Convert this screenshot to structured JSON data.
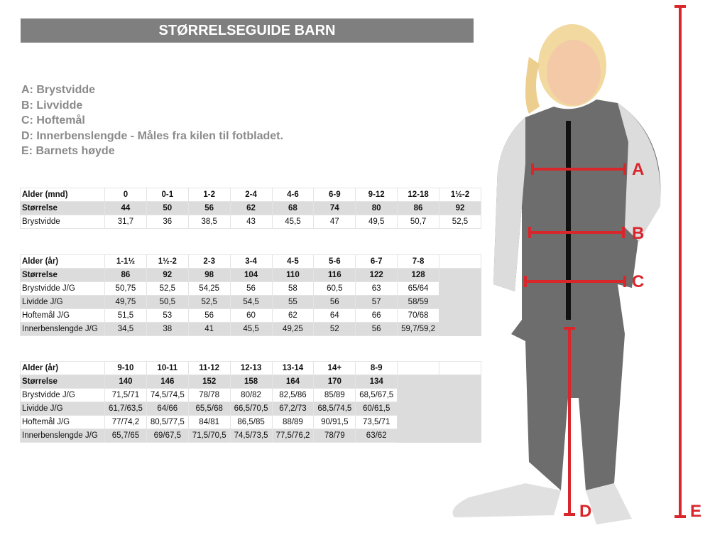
{
  "title": "STØRRELSEGUIDE BARN",
  "legend": [
    "A: Brystvidde",
    "B: Livvidde",
    "C: Hoftemål",
    "D: Innerbenslengde - Måles fra kilen til fotbladet.",
    "E: Barnets høyde"
  ],
  "tables": [
    {
      "rows": [
        [
          "Alder (mnd)",
          "0",
          "0-1",
          "1-2",
          "2-4",
          "4-6",
          "6-9",
          "9-12",
          "12-18",
          "1½-2"
        ],
        [
          "Størrelse",
          "44",
          "50",
          "56",
          "62",
          "68",
          "74",
          "80",
          "86",
          "92"
        ],
        [
          "Brystvidde",
          "31,7",
          "36",
          "38,5",
          "43",
          "45,5",
          "47",
          "49,5",
          "50,7",
          "52,5"
        ]
      ]
    },
    {
      "rows": [
        [
          "Alder (år)",
          "1-1½",
          "1½-2",
          "2-3",
          "3-4",
          "4-5",
          "5-6",
          "6-7",
          "7-8",
          ""
        ],
        [
          "Størrelse",
          "86",
          "92",
          "98",
          "104",
          "110",
          "116",
          "122",
          "128"
        ],
        [
          "Brystvidde J/G",
          "50,75",
          "52,5",
          "54,25",
          "56",
          "58",
          "60,5",
          "63",
          "65/64"
        ],
        [
          "Lividde J/G",
          "49,75",
          "50,5",
          "52,5",
          "54,5",
          "55",
          "56",
          "57",
          "58/59"
        ],
        [
          "Hoftemål J/G",
          "51,5",
          "53",
          "56",
          "60",
          "62",
          "64",
          "66",
          "70/68"
        ],
        [
          "Innerbenslengde J/G",
          "34,5",
          "38",
          "41",
          "45,5",
          "49,25",
          "52",
          "56",
          "59,7/59,2"
        ]
      ]
    },
    {
      "rows": [
        [
          "Alder (år)",
          "9-10",
          "10-11",
          "11-12",
          "12-13",
          "13-14",
          "14+",
          "8-9",
          "",
          ""
        ],
        [
          "Størrelse",
          "140",
          "146",
          "152",
          "158",
          "164",
          "170",
          "134"
        ],
        [
          "Brystvidde J/G",
          "71,5/71",
          "74,5/74,5",
          "78/78",
          "80/82",
          "82,5/86",
          "85/89",
          "68,5/67,5"
        ],
        [
          "Lividde J/G",
          "61,7/63,5",
          "64/66",
          "65,5/68",
          "66,5/70,5",
          "67,2/73",
          "68,5/74,5",
          "60/61,5"
        ],
        [
          "Hoftemål J/G",
          "77/74,2",
          "80,5/77,5",
          "84/81",
          "86,5/85",
          "88/89",
          "90/91,5",
          "73,5/71"
        ],
        [
          "Innerbenslengde J/G",
          "65,7/65",
          "69/67,5",
          "71,5/70,5",
          "74,5/73,5",
          "77,5/76,2",
          "78/79",
          "63/62"
        ]
      ]
    }
  ],
  "markers": {
    "a": "A",
    "b": "B",
    "c": "C",
    "d": "D",
    "e": "E"
  },
  "colors": {
    "marker": "#d9262b",
    "header": "#7f7f7f",
    "row_shade": "#dcdcdc"
  }
}
